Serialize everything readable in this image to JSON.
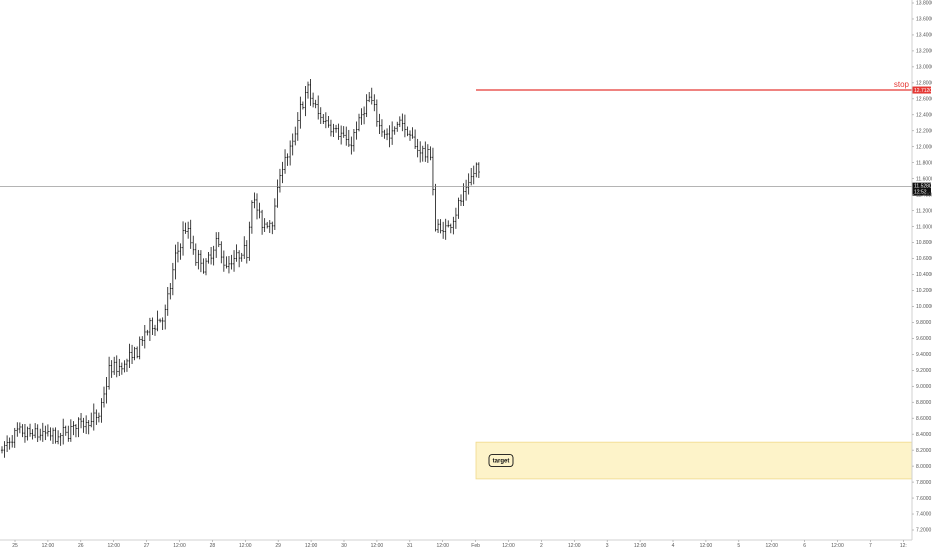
{
  "chart_data": {
    "type": "ohlc",
    "title": "",
    "xlabel": "",
    "ylabel": "",
    "ylim": [
      7.2,
      13.8
    ],
    "y_ticks": [
      "7.2000",
      "7.4000",
      "7.6000",
      "7.8000",
      "8.0000",
      "8.2000",
      "8.4000",
      "8.6000",
      "8.8000",
      "9.0000",
      "9.2000",
      "9.4000",
      "9.6000",
      "9.8000",
      "10.0000",
      "10.2000",
      "10.4000",
      "10.6000",
      "10.8000",
      "11.0000",
      "11.2000",
      "11.4000",
      "11.6000",
      "11.8000",
      "12.0000",
      "12.2000",
      "12.4000",
      "12.6000",
      "12.8000",
      "13.0000",
      "13.2000",
      "13.4000",
      "13.6000",
      "13.8000"
    ],
    "x_ticks": [
      "25",
      "12:00",
      "26",
      "12:00",
      "27",
      "12:00",
      "28",
      "12:00",
      "29",
      "12:00",
      "30",
      "12:00",
      "31",
      "12:00",
      "Feb",
      "12:00",
      "2",
      "12:00",
      "3",
      "12:00",
      "4",
      "12:00",
      "5",
      "12:00",
      "6",
      "12:00",
      "7",
      "12:"
    ],
    "price_line": {
      "value": 11.5,
      "label": "11.5280",
      "sublabel": "12:52"
    },
    "stop": {
      "value": 12.71,
      "label": "stop",
      "tag": "12.7120"
    },
    "target": {
      "low": 7.84,
      "high": 8.3,
      "label": "target"
    },
    "colors": {
      "bars": "#111111",
      "stop": "#e53935",
      "target_fill": "#fdf3c9",
      "target_border": "#f0d98a",
      "price_line": "#888888",
      "price_tag": "#111111"
    },
    "waypoints": [
      [
        0,
        8.2
      ],
      [
        6,
        8.4
      ],
      [
        12,
        8.4
      ],
      [
        18,
        8.4
      ],
      [
        22,
        8.35
      ],
      [
        28,
        8.5
      ],
      [
        32,
        8.55
      ],
      [
        38,
        8.6
      ],
      [
        42,
        9.2
      ],
      [
        47,
        9.25
      ],
      [
        52,
        9.4
      ],
      [
        57,
        9.7
      ],
      [
        60,
        9.8
      ],
      [
        64,
        9.9
      ],
      [
        68,
        10.6
      ],
      [
        72,
        11.0
      ],
      [
        76,
        10.6
      ],
      [
        80,
        10.5
      ],
      [
        84,
        10.8
      ],
      [
        88,
        10.5
      ],
      [
        92,
        10.6
      ],
      [
        96,
        10.7
      ],
      [
        98,
        11.4
      ],
      [
        102,
        11.0
      ],
      [
        106,
        11.1
      ],
      [
        110,
        11.8
      ],
      [
        114,
        12.0
      ],
      [
        117,
        12.5
      ],
      [
        120,
        12.7
      ],
      [
        124,
        12.4
      ],
      [
        128,
        12.3
      ],
      [
        132,
        12.2
      ],
      [
        136,
        12.0
      ],
      [
        140,
        12.3
      ],
      [
        144,
        12.6
      ],
      [
        148,
        12.3
      ],
      [
        152,
        12.1
      ],
      [
        156,
        12.35
      ],
      [
        160,
        12.1
      ],
      [
        164,
        11.95
      ],
      [
        168,
        11.9
      ],
      [
        170,
        11.0
      ],
      [
        174,
        10.95
      ],
      [
        178,
        11.2
      ],
      [
        182,
        11.45
      ],
      [
        186,
        11.75
      ],
      [
        188,
        11.55
      ]
    ]
  }
}
